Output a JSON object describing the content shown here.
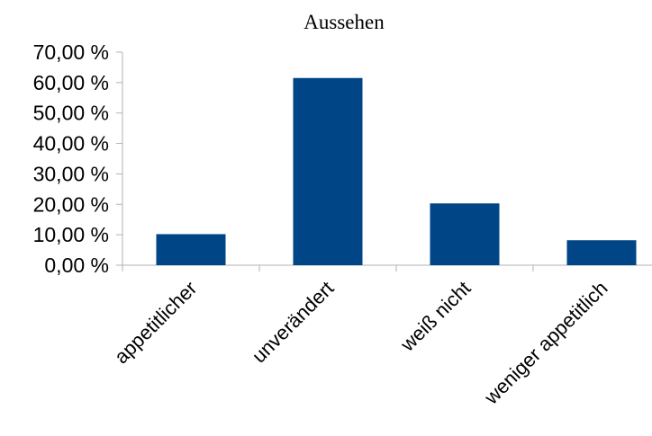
{
  "chart_data": {
    "type": "bar",
    "title": "Aussehen",
    "categories": [
      "appetitlicher",
      "unverändert",
      "weiß nicht",
      "weniger appetitlich"
    ],
    "values": [
      10.2,
      61.5,
      20.3,
      8.2
    ],
    "y_ticks": [
      "0,00 %",
      "10,00 %",
      "20,00 %",
      "30,00 %",
      "40,00 %",
      "50,00 %",
      "60,00 %",
      "70,00 %"
    ],
    "ylim": [
      0,
      70
    ],
    "xlabel": "",
    "ylabel": "",
    "grid": false,
    "legend": "none",
    "bar_color": "#004586"
  }
}
